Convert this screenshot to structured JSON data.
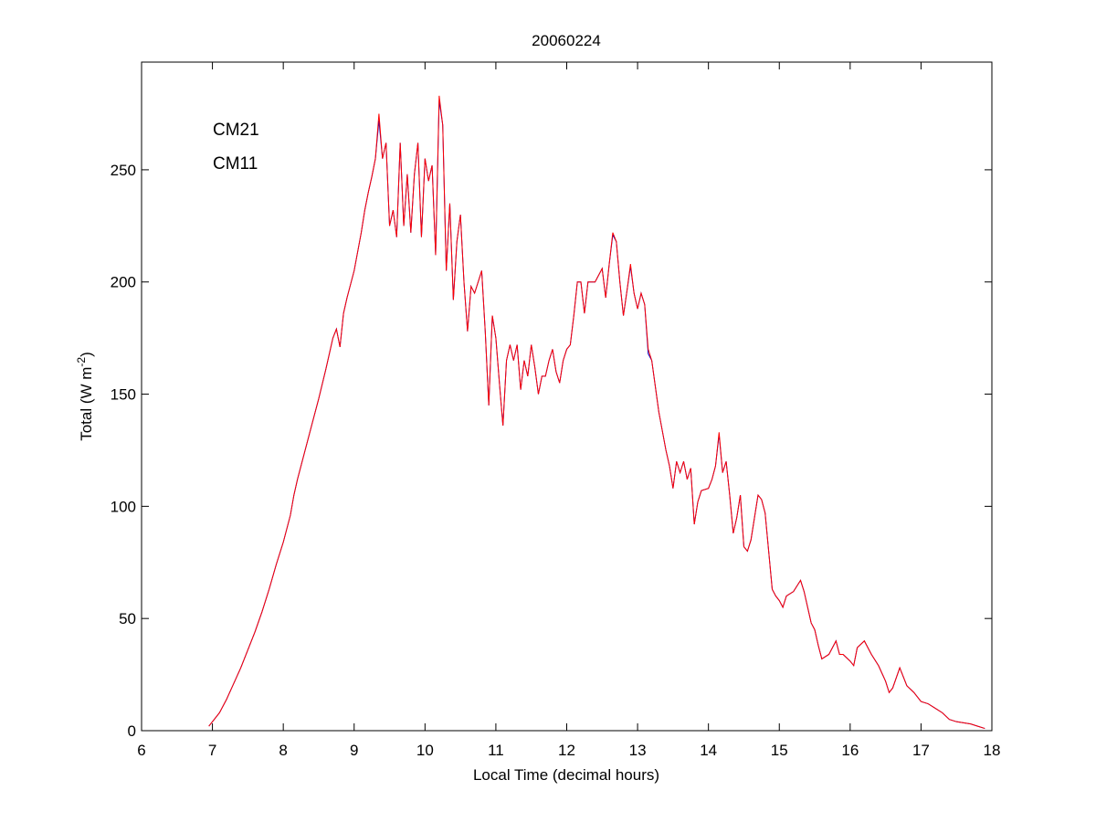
{
  "chart_data": {
    "type": "line",
    "title": "20060224",
    "x_label": "Local Time (decimal hours)",
    "y_label": [
      "Total (W m",
      "-2",
      ")"
    ],
    "xlim": [
      6,
      18
    ],
    "xticks": [
      6,
      7,
      8,
      9,
      10,
      11,
      12,
      13,
      14,
      15,
      16,
      17,
      18
    ],
    "ylim": [
      0,
      298
    ],
    "yticks": [
      0,
      50,
      100,
      150,
      200,
      250
    ],
    "grid": false,
    "legend": "upper left",
    "x": [
      6.95,
      7.0,
      7.1,
      7.2,
      7.3,
      7.4,
      7.5,
      7.6,
      7.7,
      7.8,
      7.9,
      8.0,
      8.1,
      8.15,
      8.2,
      8.3,
      8.4,
      8.5,
      8.6,
      8.7,
      8.75,
      8.8,
      8.85,
      8.9,
      9.0,
      9.1,
      9.15,
      9.2,
      9.25,
      9.3,
      9.35,
      9.4,
      9.45,
      9.5,
      9.55,
      9.6,
      9.65,
      9.7,
      9.75,
      9.8,
      9.85,
      9.9,
      9.95,
      10.0,
      10.05,
      10.1,
      10.15,
      10.2,
      10.25,
      10.3,
      10.35,
      10.4,
      10.45,
      10.5,
      10.55,
      10.6,
      10.65,
      10.7,
      10.75,
      10.8,
      10.85,
      10.9,
      10.95,
      11.0,
      11.05,
      11.1,
      11.15,
      11.2,
      11.25,
      11.3,
      11.35,
      11.4,
      11.45,
      11.5,
      11.55,
      11.6,
      11.65,
      11.7,
      11.75,
      11.8,
      11.85,
      11.9,
      11.95,
      12.0,
      12.05,
      12.1,
      12.15,
      12.2,
      12.25,
      12.3,
      12.4,
      12.5,
      12.55,
      12.6,
      12.65,
      12.7,
      12.75,
      12.8,
      12.85,
      12.9,
      12.95,
      13.0,
      13.05,
      13.1,
      13.15,
      13.2,
      13.3,
      13.4,
      13.45,
      13.5,
      13.55,
      13.6,
      13.65,
      13.7,
      13.75,
      13.8,
      13.85,
      13.9,
      14.0,
      14.05,
      14.1,
      14.15,
      14.2,
      14.25,
      14.3,
      14.35,
      14.4,
      14.45,
      14.5,
      14.55,
      14.6,
      14.65,
      14.7,
      14.75,
      14.8,
      14.85,
      14.9,
      14.95,
      15.0,
      15.05,
      15.1,
      15.2,
      15.3,
      15.35,
      15.4,
      15.45,
      15.5,
      15.55,
      15.6,
      15.7,
      15.8,
      15.85,
      15.9,
      16.0,
      16.05,
      16.1,
      16.2,
      16.3,
      16.4,
      16.5,
      16.55,
      16.6,
      16.7,
      16.8,
      16.9,
      17.0,
      17.1,
      17.2,
      17.3,
      17.4,
      17.5,
      17.6,
      17.7,
      17.8,
      17.9
    ],
    "series": [
      {
        "name": "CM21",
        "color": "#0000c8",
        "values": [
          2,
          4,
          8,
          14,
          21,
          28,
          36,
          44,
          53,
          63,
          74,
          84,
          96,
          105,
          112,
          124,
          136,
          148,
          161,
          175,
          179,
          171,
          186,
          193,
          205,
          222,
          232,
          240,
          247,
          255,
          272,
          255,
          262,
          225,
          232,
          220,
          262,
          225,
          248,
          222,
          248,
          262,
          220,
          255,
          245,
          252,
          212,
          281,
          270,
          205,
          235,
          192,
          218,
          230,
          200,
          178,
          198,
          195,
          200,
          205,
          178,
          145,
          185,
          175,
          155,
          136,
          165,
          172,
          165,
          172,
          152,
          165,
          158,
          172,
          162,
          150,
          158,
          158,
          165,
          170,
          160,
          155,
          165,
          170,
          172,
          185,
          200,
          200,
          186,
          200,
          200,
          206,
          193,
          208,
          221,
          218,
          200,
          185,
          196,
          207,
          195,
          188,
          195,
          190,
          168,
          165,
          142,
          125,
          118,
          108,
          120,
          115,
          120,
          112,
          117,
          92,
          102,
          107,
          108,
          112,
          118,
          132,
          115,
          120,
          105,
          88,
          95,
          105,
          82,
          80,
          85,
          95,
          105,
          103,
          97,
          80,
          63,
          60,
          58,
          55,
          60,
          62,
          67,
          62,
          55,
          48,
          45,
          38,
          32,
          34,
          40,
          34,
          34,
          31,
          29,
          37,
          40,
          34,
          29,
          22,
          17,
          19,
          28,
          20,
          17,
          13,
          12,
          10,
          8,
          5,
          4,
          3.5,
          3,
          2,
          1
        ]
      },
      {
        "name": "CM11",
        "color": "#ff0000",
        "values": [
          2,
          4,
          8,
          14,
          21,
          28,
          36,
          44,
          53,
          63,
          74,
          84,
          96,
          105,
          112,
          124,
          136,
          148,
          161,
          175,
          179,
          171,
          186,
          193,
          205,
          222,
          232,
          240,
          247,
          255,
          275,
          255,
          262,
          225,
          232,
          220,
          262,
          225,
          248,
          222,
          248,
          262,
          220,
          255,
          245,
          252,
          212,
          283,
          270,
          205,
          235,
          192,
          218,
          230,
          200,
          178,
          198,
          195,
          200,
          205,
          178,
          145,
          185,
          175,
          155,
          136,
          165,
          172,
          165,
          172,
          152,
          165,
          158,
          172,
          162,
          150,
          158,
          158,
          165,
          170,
          160,
          155,
          165,
          170,
          172,
          185,
          200,
          200,
          186,
          200,
          200,
          206,
          193,
          208,
          222,
          218,
          200,
          185,
          196,
          208,
          195,
          188,
          195,
          190,
          170,
          165,
          142,
          125,
          118,
          108,
          120,
          115,
          120,
          112,
          117,
          92,
          102,
          107,
          108,
          112,
          118,
          133,
          115,
          120,
          105,
          88,
          95,
          105,
          82,
          80,
          85,
          95,
          105,
          103,
          97,
          80,
          63,
          60,
          58,
          55,
          60,
          62,
          67,
          62,
          55,
          48,
          45,
          38,
          32,
          34,
          40,
          34,
          34,
          31,
          29,
          37,
          40,
          34,
          29,
          22,
          17,
          19,
          28,
          20,
          17,
          13,
          12,
          10,
          8,
          5,
          4,
          3.5,
          3,
          2,
          1
        ]
      }
    ]
  }
}
